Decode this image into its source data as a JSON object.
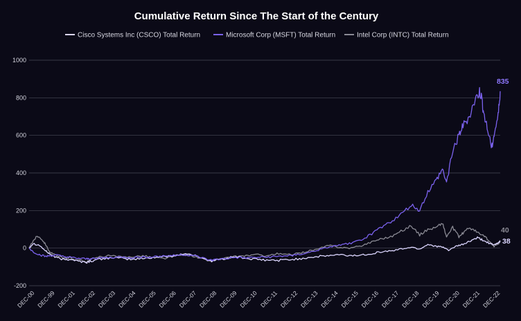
{
  "chart_data": {
    "type": "line",
    "title": "Cumulative Return Since The Start of the Century",
    "xlabel": "",
    "ylabel": "",
    "ylim": [
      -200,
      1000
    ],
    "yticks": [
      -200,
      0,
      200,
      400,
      600,
      800,
      1000
    ],
    "x_start_year": 2000,
    "x_end_year": 2022.8,
    "x_tick_labels": [
      "DEC-00",
      "DEC-99",
      "DEC-01",
      "DEC-02",
      "DEC-03",
      "DEC-04",
      "DEC-05",
      "DEC-06",
      "DEC-07",
      "DEC-08",
      "DEC-09",
      "DEC-10",
      "DEC-11",
      "DEC-12",
      "DEC-13",
      "DEC-14",
      "DEC-15",
      "DEC-16",
      "DEC-17",
      "DEC-18",
      "DEC-19",
      "DEC-20",
      "DEC-21",
      "DEC-22"
    ],
    "legend_position": "top-center",
    "series": [
      {
        "name": "Cisco Systems Inc (CSCO) Total Return",
        "color": "#dcd6ff",
        "end_label": "38",
        "points": [
          [
            2000,
            0
          ],
          [
            2000.2,
            25
          ],
          [
            2000.5,
            15
          ],
          [
            2000.8,
            -15
          ],
          [
            2001,
            -30
          ],
          [
            2001.3,
            -50
          ],
          [
            2001.7,
            -62
          ],
          [
            2002,
            -58
          ],
          [
            2002.4,
            -70
          ],
          [
            2002.8,
            -75
          ],
          [
            2003,
            -68
          ],
          [
            2003.5,
            -58
          ],
          [
            2004,
            -50
          ],
          [
            2004.5,
            -55
          ],
          [
            2005,
            -60
          ],
          [
            2005.5,
            -55
          ],
          [
            2006,
            -50
          ],
          [
            2006.5,
            -45
          ],
          [
            2007,
            -40
          ],
          [
            2007.5,
            -30
          ],
          [
            2007.9,
            -35
          ],
          [
            2008.3,
            -50
          ],
          [
            2008.8,
            -68
          ],
          [
            2009,
            -65
          ],
          [
            2009.5,
            -55
          ],
          [
            2010,
            -45
          ],
          [
            2010.5,
            -55
          ],
          [
            2011,
            -60
          ],
          [
            2011.5,
            -65
          ],
          [
            2012,
            -65
          ],
          [
            2012.5,
            -62
          ],
          [
            2013,
            -58
          ],
          [
            2013.5,
            -50
          ],
          [
            2014,
            -45
          ],
          [
            2014.5,
            -40
          ],
          [
            2015,
            -35
          ],
          [
            2015.5,
            -40
          ],
          [
            2016,
            -38
          ],
          [
            2016.5,
            -30
          ],
          [
            2017,
            -20
          ],
          [
            2017.5,
            -15
          ],
          [
            2018,
            -5
          ],
          [
            2018.5,
            5
          ],
          [
            2018.9,
            -5
          ],
          [
            2019.3,
            20
          ],
          [
            2019.7,
            10
          ],
          [
            2020,
            5
          ],
          [
            2020.3,
            -10
          ],
          [
            2020.7,
            10
          ],
          [
            2021,
            20
          ],
          [
            2021.3,
            35
          ],
          [
            2021.7,
            55
          ],
          [
            2021.9,
            45
          ],
          [
            2022.2,
            30
          ],
          [
            2022.5,
            15
          ],
          [
            2022.7,
            28
          ],
          [
            2022.8,
            38
          ]
        ]
      },
      {
        "name": "Microsoft Corp (MSFT) Total Return",
        "color": "#7b62ee",
        "end_label": "835",
        "points": [
          [
            2000,
            0
          ],
          [
            2000.2,
            -20
          ],
          [
            2000.5,
            -35
          ],
          [
            2000.8,
            -45
          ],
          [
            2001,
            -40
          ],
          [
            2001.3,
            -38
          ],
          [
            2001.7,
            -45
          ],
          [
            2002,
            -50
          ],
          [
            2002.4,
            -55
          ],
          [
            2002.8,
            -58
          ],
          [
            2003,
            -55
          ],
          [
            2003.5,
            -52
          ],
          [
            2004,
            -50
          ],
          [
            2004.5,
            -48
          ],
          [
            2005,
            -50
          ],
          [
            2005.5,
            -47
          ],
          [
            2006,
            -45
          ],
          [
            2006.5,
            -42
          ],
          [
            2007,
            -40
          ],
          [
            2007.5,
            -35
          ],
          [
            2007.9,
            -38
          ],
          [
            2008.3,
            -50
          ],
          [
            2008.8,
            -65
          ],
          [
            2009,
            -62
          ],
          [
            2009.5,
            -55
          ],
          [
            2010,
            -50
          ],
          [
            2010.5,
            -52
          ],
          [
            2011,
            -50
          ],
          [
            2011.5,
            -48
          ],
          [
            2012,
            -45
          ],
          [
            2012.5,
            -40
          ],
          [
            2013,
            -35
          ],
          [
            2013.5,
            -25
          ],
          [
            2014,
            -10
          ],
          [
            2014.5,
            5
          ],
          [
            2015,
            15
          ],
          [
            2015.5,
            25
          ],
          [
            2016,
            40
          ],
          [
            2016.5,
            70
          ],
          [
            2017,
            110
          ],
          [
            2017.5,
            140
          ],
          [
            2018,
            180
          ],
          [
            2018.5,
            230
          ],
          [
            2018.9,
            200
          ],
          [
            2019.3,
            300
          ],
          [
            2019.7,
            360
          ],
          [
            2020,
            420
          ],
          [
            2020.2,
            350
          ],
          [
            2020.5,
            520
          ],
          [
            2020.8,
            600
          ],
          [
            2021,
            650
          ],
          [
            2021.3,
            700
          ],
          [
            2021.6,
            790
          ],
          [
            2021.8,
            830
          ],
          [
            2021.9,
            800
          ],
          [
            2022,
            720
          ],
          [
            2022.2,
            620
          ],
          [
            2022.4,
            540
          ],
          [
            2022.5,
            600
          ],
          [
            2022.7,
            700
          ],
          [
            2022.8,
            835
          ]
        ]
      },
      {
        "name": "Intel Corp (INTC) Total Return",
        "color": "#8a8a94",
        "end_label": "40",
        "points": [
          [
            2000,
            0
          ],
          [
            2000.2,
            40
          ],
          [
            2000.4,
            65
          ],
          [
            2000.6,
            50
          ],
          [
            2000.8,
            20
          ],
          [
            2001,
            -20
          ],
          [
            2001.3,
            -40
          ],
          [
            2001.7,
            -55
          ],
          [
            2002,
            -50
          ],
          [
            2002.4,
            -65
          ],
          [
            2002.8,
            -70
          ],
          [
            2003,
            -60
          ],
          [
            2003.5,
            -45
          ],
          [
            2004,
            -40
          ],
          [
            2004.5,
            -50
          ],
          [
            2005,
            -45
          ],
          [
            2005.5,
            -40
          ],
          [
            2006,
            -50
          ],
          [
            2006.5,
            -55
          ],
          [
            2007,
            -45
          ],
          [
            2007.5,
            -35
          ],
          [
            2007.9,
            -40
          ],
          [
            2008.3,
            -55
          ],
          [
            2008.8,
            -68
          ],
          [
            2009,
            -62
          ],
          [
            2009.5,
            -55
          ],
          [
            2010,
            -45
          ],
          [
            2010.5,
            -40
          ],
          [
            2011,
            -35
          ],
          [
            2011.5,
            -40
          ],
          [
            2012,
            -30
          ],
          [
            2012.5,
            -35
          ],
          [
            2013,
            -30
          ],
          [
            2013.5,
            -15
          ],
          [
            2014,
            -5
          ],
          [
            2014.5,
            15
          ],
          [
            2015,
            5
          ],
          [
            2015.5,
            0
          ],
          [
            2016,
            10
          ],
          [
            2016.5,
            30
          ],
          [
            2017,
            50
          ],
          [
            2017.5,
            60
          ],
          [
            2018,
            90
          ],
          [
            2018.5,
            120
          ],
          [
            2018.9,
            70
          ],
          [
            2019.3,
            100
          ],
          [
            2019.7,
            110
          ],
          [
            2020,
            135
          ],
          [
            2020.2,
            60
          ],
          [
            2020.5,
            110
          ],
          [
            2020.8,
            60
          ],
          [
            2021,
            80
          ],
          [
            2021.3,
            110
          ],
          [
            2021.6,
            90
          ],
          [
            2021.9,
            70
          ],
          [
            2022.1,
            60
          ],
          [
            2022.3,
            30
          ],
          [
            2022.5,
            10
          ],
          [
            2022.7,
            20
          ],
          [
            2022.8,
            40
          ]
        ]
      }
    ]
  }
}
